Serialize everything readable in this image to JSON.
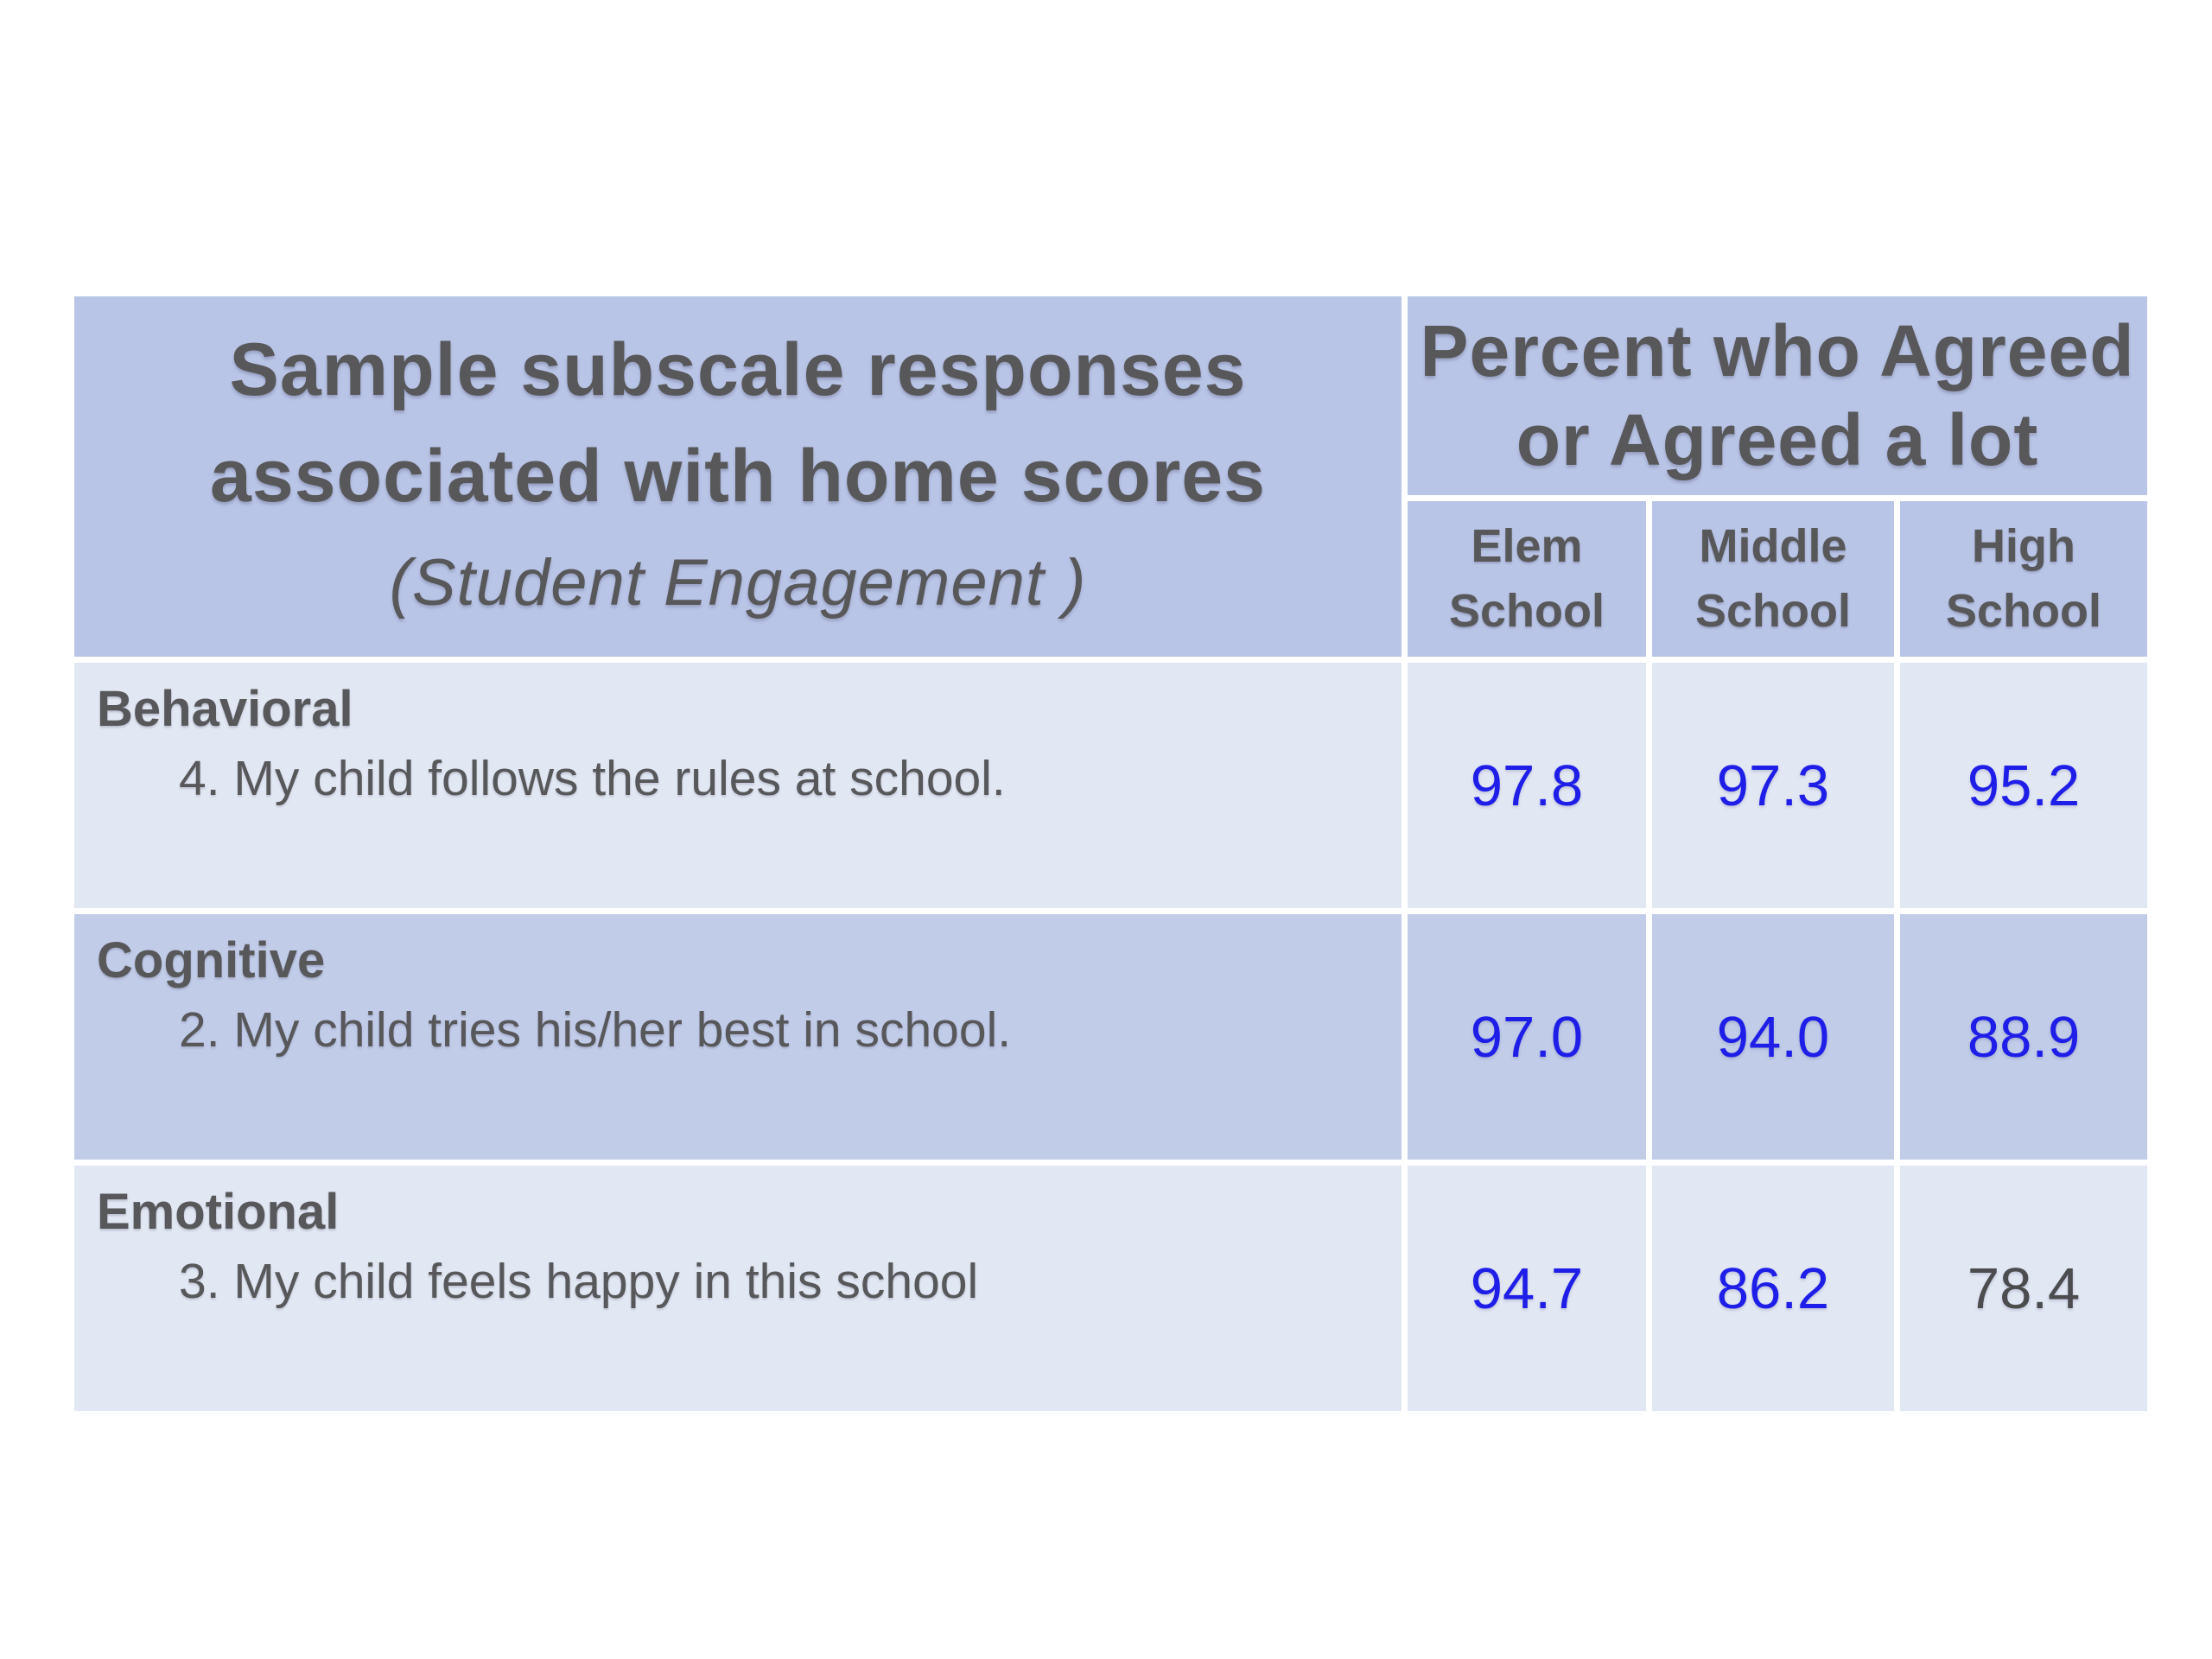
{
  "table": {
    "header": {
      "title_lines": [
        "Sample subscale responses",
        "associated with home scores"
      ],
      "title_subtitle": "(Student Engagement )",
      "percent_lines": [
        "Percent who Agreed",
        "or Agreed a lot"
      ],
      "columns": [
        {
          "line1": "Elem",
          "line2": "School"
        },
        {
          "line1": "Middle",
          "line2": "School"
        },
        {
          "line1": "High",
          "line2": "School"
        }
      ]
    },
    "rows": [
      {
        "category": "Behavioral",
        "item": "4. My child follows the rules at school.",
        "values": [
          {
            "text": "97.8",
            "tone": "blue"
          },
          {
            "text": "97.3",
            "tone": "blue"
          },
          {
            "text": "95.2",
            "tone": "blue"
          }
        ]
      },
      {
        "category": "Cognitive",
        "item": "2. My child tries his/her best in school.",
        "values": [
          {
            "text": "97.0",
            "tone": "blue"
          },
          {
            "text": "94.0",
            "tone": "blue"
          },
          {
            "text": "88.9",
            "tone": "blue"
          }
        ]
      },
      {
        "category": "Emotional",
        "item": "3. My child feels happy in this school",
        "values": [
          {
            "text": "94.7",
            "tone": "blue"
          },
          {
            "text": "86.2",
            "tone": "blue"
          },
          {
            "text": "78.4",
            "tone": "gray"
          }
        ]
      }
    ],
    "colors": {
      "header_bg": "#b9c5e7",
      "row_dark_bg": "#c1cce9",
      "row_light_bg": "#e2e7f4",
      "text_gray": "#58585a",
      "value_blue": "#1e1ee8",
      "value_gray": "#4c4c4f",
      "gridline": "#ffffff"
    }
  },
  "chart_data": {
    "type": "table",
    "title": "Sample subscale responses associated with home scores (Student Engagement )",
    "value_header": "Percent who Agreed or Agreed a lot",
    "categories": [
      "Elem School",
      "Middle School",
      "High School"
    ],
    "series": [
      {
        "name": "Behavioral — 4. My child follows the rules at school.",
        "values": [
          97.8,
          97.3,
          95.2
        ]
      },
      {
        "name": "Cognitive — 2. My child tries his/her best in school.",
        "values": [
          97.0,
          94.0,
          88.9
        ]
      },
      {
        "name": "Emotional — 3. My child feels happy in this school",
        "values": [
          94.7,
          86.2,
          78.4
        ]
      }
    ]
  }
}
